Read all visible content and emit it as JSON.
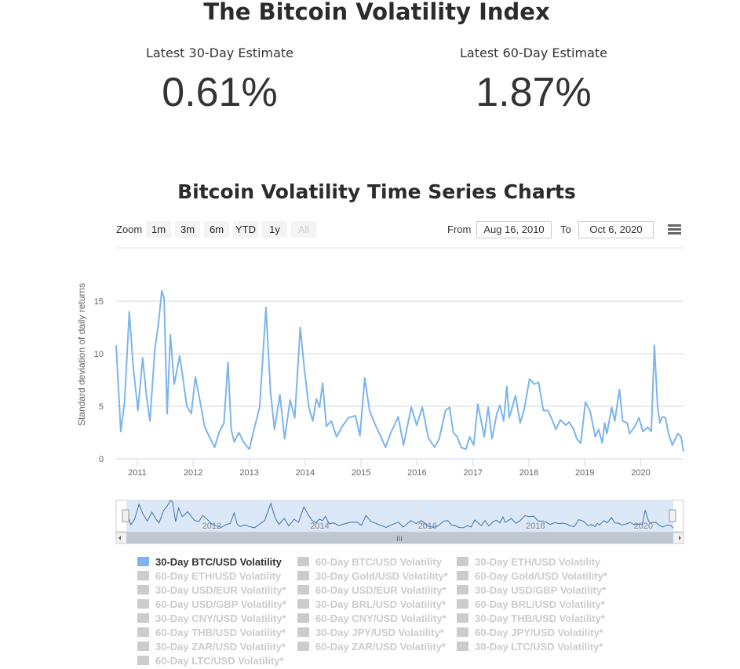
{
  "header": {
    "title": "The Bitcoin Volatility Index",
    "estimates": [
      {
        "label": "Latest 30-Day Estimate",
        "value": "0.61%"
      },
      {
        "label": "Latest 60-Day Estimate",
        "value": "1.87%"
      }
    ],
    "subtitle": "Bitcoin Volatility Time Series Charts"
  },
  "toolbar": {
    "zoom_label": "Zoom",
    "zoom_buttons": [
      "1m",
      "3m",
      "6m",
      "YTD",
      "1y",
      "All"
    ],
    "disabled_button": "All",
    "from_label": "From",
    "from_value": "Aug 16, 2010",
    "to_label": "To",
    "to_value": "Oct 6, 2020",
    "menu_icon": "hamburger-menu-icon"
  },
  "chart_data": {
    "type": "line",
    "ylabel": "Standard deviation of daily returns",
    "yticks": [
      0,
      5,
      10,
      15
    ],
    "ylim": [
      0,
      17
    ],
    "xticks": [
      "2011",
      "2012",
      "2013",
      "2014",
      "2015",
      "2016",
      "2017",
      "2018",
      "2019",
      "2020"
    ],
    "navigator_ticks": [
      "2012",
      "2014",
      "2016",
      "2018",
      "2020"
    ],
    "xlim": [
      "2010-08-16",
      "2020-10-06"
    ],
    "grid": true,
    "line_color": "#7cb5ec",
    "series": [
      {
        "name": "30-Day BTC/USD Volatility",
        "points": [
          [
            "2010-08-16",
            10.8
          ],
          [
            "2010-09-15",
            2.6
          ],
          [
            "2010-10-10",
            5.4
          ],
          [
            "2010-11-10",
            14.0
          ],
          [
            "2010-12-05",
            8.8
          ],
          [
            "2011-01-05",
            4.6
          ],
          [
            "2011-02-05",
            9.6
          ],
          [
            "2011-03-01",
            6.1
          ],
          [
            "2011-03-25",
            3.6
          ],
          [
            "2011-04-25",
            10.3
          ],
          [
            "2011-05-20",
            13.0
          ],
          [
            "2011-06-10",
            16.0
          ],
          [
            "2011-06-25",
            15.3
          ],
          [
            "2011-07-15",
            4.3
          ],
          [
            "2011-08-05",
            11.8
          ],
          [
            "2011-08-30",
            7.1
          ],
          [
            "2011-10-05",
            9.8
          ],
          [
            "2011-10-25",
            7.8
          ],
          [
            "2011-11-20",
            5.0
          ],
          [
            "2011-12-20",
            4.3
          ],
          [
            "2012-01-15",
            7.8
          ],
          [
            "2012-02-20",
            5.1
          ],
          [
            "2012-03-15",
            3.1
          ],
          [
            "2012-04-15",
            2.1
          ],
          [
            "2012-05-20",
            1.1
          ],
          [
            "2012-06-20",
            2.6
          ],
          [
            "2012-07-20",
            3.4
          ],
          [
            "2012-08-15",
            9.2
          ],
          [
            "2012-09-05",
            2.8
          ],
          [
            "2012-09-25",
            1.6
          ],
          [
            "2012-10-25",
            2.5
          ],
          [
            "2012-11-25",
            1.6
          ],
          [
            "2013-01-01",
            0.9
          ],
          [
            "2013-02-01",
            2.8
          ],
          [
            "2013-03-10",
            4.9
          ],
          [
            "2013-04-20",
            14.4
          ],
          [
            "2013-05-20",
            6.3
          ],
          [
            "2013-06-15",
            2.8
          ],
          [
            "2013-07-20",
            6.1
          ],
          [
            "2013-08-20",
            1.9
          ],
          [
            "2013-09-25",
            5.6
          ],
          [
            "2013-10-25",
            3.9
          ],
          [
            "2013-11-30",
            12.5
          ],
          [
            "2013-12-25",
            8.8
          ],
          [
            "2014-01-25",
            4.9
          ],
          [
            "2014-02-20",
            3.6
          ],
          [
            "2014-03-15",
            5.7
          ],
          [
            "2014-04-05",
            4.9
          ],
          [
            "2014-04-25",
            7.2
          ],
          [
            "2014-05-20",
            3.1
          ],
          [
            "2014-06-20",
            3.6
          ],
          [
            "2014-07-25",
            2.1
          ],
          [
            "2014-09-01",
            3.1
          ],
          [
            "2014-10-10",
            3.9
          ],
          [
            "2014-11-25",
            4.1
          ],
          [
            "2014-12-25",
            2.2
          ],
          [
            "2015-01-25",
            7.7
          ],
          [
            "2015-02-25",
            4.6
          ],
          [
            "2015-03-30",
            3.4
          ],
          [
            "2015-05-01",
            2.4
          ],
          [
            "2015-06-10",
            1.1
          ],
          [
            "2015-07-15",
            2.5
          ],
          [
            "2015-09-01",
            4.0
          ],
          [
            "2015-10-05",
            1.3
          ],
          [
            "2015-11-25",
            4.9
          ],
          [
            "2015-12-30",
            3.2
          ],
          [
            "2016-02-05",
            4.9
          ],
          [
            "2016-03-15",
            2.0
          ],
          [
            "2016-04-25",
            1.1
          ],
          [
            "2016-05-25",
            1.9
          ],
          [
            "2016-07-05",
            4.6
          ],
          [
            "2016-08-01",
            4.9
          ],
          [
            "2016-08-25",
            2.5
          ],
          [
            "2016-09-20",
            2.1
          ],
          [
            "2016-10-15",
            1.1
          ],
          [
            "2016-11-15",
            0.9
          ],
          [
            "2016-12-10",
            2.1
          ],
          [
            "2017-01-05",
            1.3
          ],
          [
            "2017-02-01",
            5.2
          ],
          [
            "2017-03-15",
            2.1
          ],
          [
            "2017-04-10",
            4.9
          ],
          [
            "2017-05-05",
            1.9
          ],
          [
            "2017-06-05",
            4.3
          ],
          [
            "2017-06-25",
            5.1
          ],
          [
            "2017-07-20",
            3.6
          ],
          [
            "2017-08-10",
            6.9
          ],
          [
            "2017-08-25",
            3.9
          ],
          [
            "2017-10-05",
            6.0
          ],
          [
            "2017-11-05",
            3.4
          ],
          [
            "2017-12-01",
            4.7
          ],
          [
            "2018-01-05",
            7.6
          ],
          [
            "2018-02-05",
            7.1
          ],
          [
            "2018-03-05",
            7.3
          ],
          [
            "2018-04-05",
            4.6
          ],
          [
            "2018-05-05",
            4.6
          ],
          [
            "2018-06-05",
            3.6
          ],
          [
            "2018-06-25",
            2.8
          ],
          [
            "2018-07-25",
            3.7
          ],
          [
            "2018-08-30",
            3.2
          ],
          [
            "2018-09-20",
            3.5
          ],
          [
            "2018-10-20",
            2.8
          ],
          [
            "2018-11-10",
            1.9
          ],
          [
            "2018-12-05",
            1.5
          ],
          [
            "2019-01-05",
            5.4
          ],
          [
            "2019-02-05",
            4.5
          ],
          [
            "2019-03-10",
            2.1
          ],
          [
            "2019-04-01",
            2.8
          ],
          [
            "2019-04-25",
            1.5
          ],
          [
            "2019-05-10",
            3.4
          ],
          [
            "2019-05-25",
            2.4
          ],
          [
            "2019-06-25",
            4.9
          ],
          [
            "2019-07-15",
            3.6
          ],
          [
            "2019-08-15",
            6.6
          ],
          [
            "2019-09-05",
            3.6
          ],
          [
            "2019-10-05",
            3.4
          ],
          [
            "2019-10-20",
            2.4
          ],
          [
            "2019-11-25",
            3.1
          ],
          [
            "2019-12-20",
            3.9
          ],
          [
            "2020-01-15",
            2.6
          ],
          [
            "2020-02-15",
            3.0
          ],
          [
            "2020-03-10",
            2.6
          ],
          [
            "2020-03-30",
            10.8
          ],
          [
            "2020-04-20",
            4.9
          ],
          [
            "2020-05-05",
            3.4
          ],
          [
            "2020-05-20",
            4.0
          ],
          [
            "2020-06-10",
            3.9
          ],
          [
            "2020-06-30",
            2.4
          ],
          [
            "2020-07-25",
            1.3
          ],
          [
            "2020-08-30",
            2.4
          ],
          [
            "2020-09-20",
            2.1
          ],
          [
            "2020-10-06",
            0.7
          ]
        ]
      }
    ]
  },
  "legend": [
    {
      "label": "30-Day BTC/USD Volatility",
      "active": true
    },
    {
      "label": "60-Day BTC/USD Volatility"
    },
    {
      "label": "30-Day ETH/USD Volatility"
    },
    {
      "label": "60-Day ETH/USD Volatility"
    },
    {
      "label": "30-Day Gold/USD Volatility*"
    },
    {
      "label": "60-Day Gold/USD Volatility*"
    },
    {
      "label": "30-Day USD/EUR Volatility*"
    },
    {
      "label": "60-Day USD/EUR Volatility*"
    },
    {
      "label": "30-Day USD/GBP Volatility*"
    },
    {
      "label": "60-Day USD/GBP Volatility*"
    },
    {
      "label": "30-Day BRL/USD Volatility*"
    },
    {
      "label": "60-Day BRL/USD Volatility*"
    },
    {
      "label": "30-Day CNY/USD Volatility*"
    },
    {
      "label": "60-Day CNY/USD Volatility*"
    },
    {
      "label": "30-Day THB/USD Volatility*"
    },
    {
      "label": "60-Day THB/USD Volatility*"
    },
    {
      "label": "30-Day JPY/USD Volatility*"
    },
    {
      "label": "60-Day JPY/USD Volatility*"
    },
    {
      "label": "30-Day ZAR/USD Volatility*"
    },
    {
      "label": "60-Day ZAR/USD Volatility*"
    },
    {
      "label": "30-Day LTC/USD Volatility*"
    },
    {
      "label": "60-Day LTC/USD Volatility*"
    }
  ],
  "colors": {
    "active": "#7cb5ec",
    "inactive": "#cccccc",
    "navigator_fill": "#d6e6f7"
  }
}
